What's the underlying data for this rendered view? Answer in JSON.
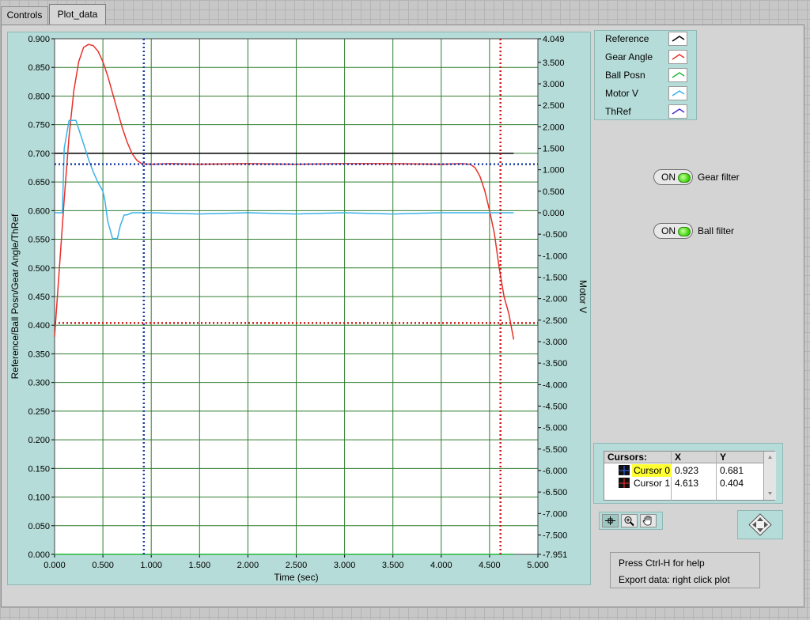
{
  "tabs": [
    {
      "label": "Controls",
      "active": false
    },
    {
      "label": "Plot_data",
      "active": true
    }
  ],
  "chart_data": {
    "type": "line",
    "xlabel": "Time (sec)",
    "ylabel": "Reference/Ball Posn/Gear Angle/ThRef",
    "y2label": "Motor V",
    "xlim": [
      0,
      5
    ],
    "ylim": [
      0,
      0.9
    ],
    "y2lim": [
      -7.951,
      4.049
    ],
    "x_ticks": [
      "0.000",
      "0.500",
      "1.000",
      "1.500",
      "2.000",
      "2.500",
      "3.000",
      "3.500",
      "4.000",
      "4.500",
      "5.000"
    ],
    "y_ticks": [
      "0.900",
      "0.850",
      "0.800",
      "0.750",
      "0.700",
      "0.650",
      "0.600",
      "0.550",
      "0.500",
      "0.450",
      "0.400",
      "0.350",
      "0.300",
      "0.250",
      "0.200",
      "0.150",
      "0.100",
      "0.050",
      "0.000"
    ],
    "y2_ticks": [
      "4.049",
      "3.500",
      "3.000",
      "2.500",
      "2.000",
      "1.500",
      "1.000",
      "0.500",
      "0.000",
      "-0.500",
      "-1.000",
      "-1.500",
      "-2.000",
      "-2.500",
      "-3.000",
      "-3.500",
      "-4.000",
      "-4.500",
      "-5.000",
      "-5.500",
      "-6.000",
      "-6.500",
      "-7.000",
      "-7.500",
      "-7.951"
    ],
    "grid": true,
    "series": [
      {
        "name": "Reference",
        "color": "#000000",
        "axis": "left",
        "x": [
          0.0,
          4.75
        ],
        "y": [
          0.7,
          0.7
        ]
      },
      {
        "name": "Gear Angle",
        "color": "#e8302a",
        "axis": "left",
        "x": [
          0.0,
          0.05,
          0.1,
          0.15,
          0.2,
          0.25,
          0.3,
          0.35,
          0.4,
          0.45,
          0.5,
          0.55,
          0.6,
          0.65,
          0.7,
          0.75,
          0.8,
          0.85,
          0.9,
          1.0,
          1.2,
          1.5,
          2.0,
          2.5,
          3.0,
          3.5,
          4.0,
          4.2,
          4.3,
          4.35,
          4.4,
          4.45,
          4.5,
          4.55,
          4.6,
          4.65,
          4.7,
          4.75
        ],
        "y": [
          0.38,
          0.5,
          0.62,
          0.73,
          0.81,
          0.86,
          0.885,
          0.89,
          0.888,
          0.878,
          0.86,
          0.835,
          0.805,
          0.775,
          0.745,
          0.72,
          0.7,
          0.688,
          0.682,
          0.681,
          0.682,
          0.681,
          0.682,
          0.681,
          0.682,
          0.682,
          0.681,
          0.682,
          0.681,
          0.675,
          0.66,
          0.635,
          0.6,
          0.56,
          0.5,
          0.45,
          0.42,
          0.375
        ]
      },
      {
        "name": "Ball Posn",
        "color": "#1fb83a",
        "axis": "left",
        "x": [
          0.0,
          4.75
        ],
        "y": [
          0.0,
          0.0
        ]
      },
      {
        "name": "Motor V",
        "color": "#3ab2e8",
        "axis": "right",
        "x": [
          0.0,
          0.08,
          0.1,
          0.15,
          0.22,
          0.25,
          0.3,
          0.35,
          0.4,
          0.45,
          0.5,
          0.52,
          0.55,
          0.6,
          0.65,
          0.68,
          0.72,
          0.75,
          0.8,
          1.0,
          1.5,
          2.0,
          2.5,
          3.0,
          3.5,
          4.0,
          4.5,
          4.75
        ],
        "y": [
          0.0,
          0.0,
          1.5,
          2.15,
          2.15,
          1.95,
          1.6,
          1.25,
          0.95,
          0.7,
          0.5,
          0.3,
          -0.2,
          -0.6,
          -0.6,
          -0.3,
          -0.05,
          -0.05,
          0.0,
          0.0,
          -0.03,
          0.0,
          -0.03,
          0.0,
          -0.03,
          0.0,
          0.0,
          0.0
        ]
      },
      {
        "name": "ThRef",
        "color": "#4b2bd6",
        "axis": "left",
        "x": [],
        "y": []
      }
    ],
    "cursors": [
      {
        "name": "Cursor 0",
        "x": 0.923,
        "y": 0.681,
        "color": "#1c3ea8"
      },
      {
        "name": "Cursor 1",
        "x": 4.613,
        "y": 0.404,
        "color": "#d01818"
      }
    ]
  },
  "legend": {
    "items": [
      {
        "label": "Reference",
        "color": "#000000"
      },
      {
        "label": "Gear Angle",
        "color": "#e8302a"
      },
      {
        "label": "Ball Posn",
        "color": "#1fb83a"
      },
      {
        "label": "Motor V",
        "color": "#3ab2e8"
      },
      {
        "label": "ThRef",
        "color": "#4b2bd6"
      }
    ]
  },
  "gear_filter": {
    "state": "ON",
    "label": "Gear filter"
  },
  "ball_filter": {
    "state": "ON",
    "label": "Ball filter"
  },
  "cursor_table": {
    "headers": {
      "name": "Cursors:",
      "x": "X",
      "y": "Y"
    },
    "rows": [
      {
        "name": "Cursor 0",
        "x": "0.923",
        "y": "0.681"
      },
      {
        "name": "Cursor 1",
        "x": "4.613",
        "y": "0.404"
      }
    ]
  },
  "graph_tools": {
    "items": [
      "cursor-move-icon",
      "zoom-icon",
      "pan-hand-icon"
    ]
  },
  "help": {
    "line1": "Press Ctrl-H for help",
    "line2": "Export data: right click plot"
  }
}
